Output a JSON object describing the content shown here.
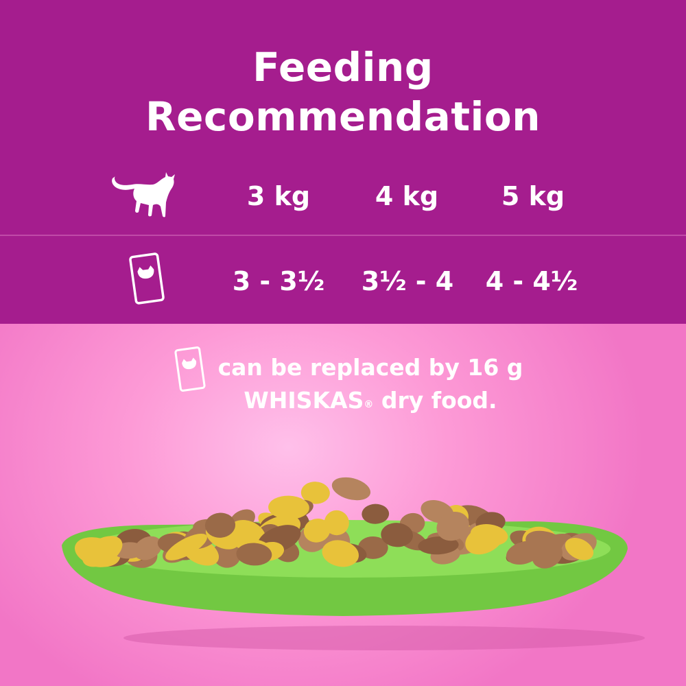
{
  "title": {
    "line1": "Feeding",
    "line2": "Recommendation"
  },
  "colors": {
    "header": "#a51d8e",
    "background": "#fd9ad6",
    "plate": "#7fd44a",
    "text": "#ffffff"
  },
  "table": {
    "weight_icon": "cat-icon",
    "portion_icon": "pouch-icon",
    "weights": [
      "3 kg",
      "4 kg",
      "5 kg"
    ],
    "portions": [
      "3 - 3½",
      "3½ - 4",
      "4 - 4½"
    ]
  },
  "note": {
    "icon": "pouch-icon",
    "line1": "can be replaced by 16 g",
    "brand": "WHISKAS",
    "reg": "®",
    "line2_rest": " dry food."
  }
}
